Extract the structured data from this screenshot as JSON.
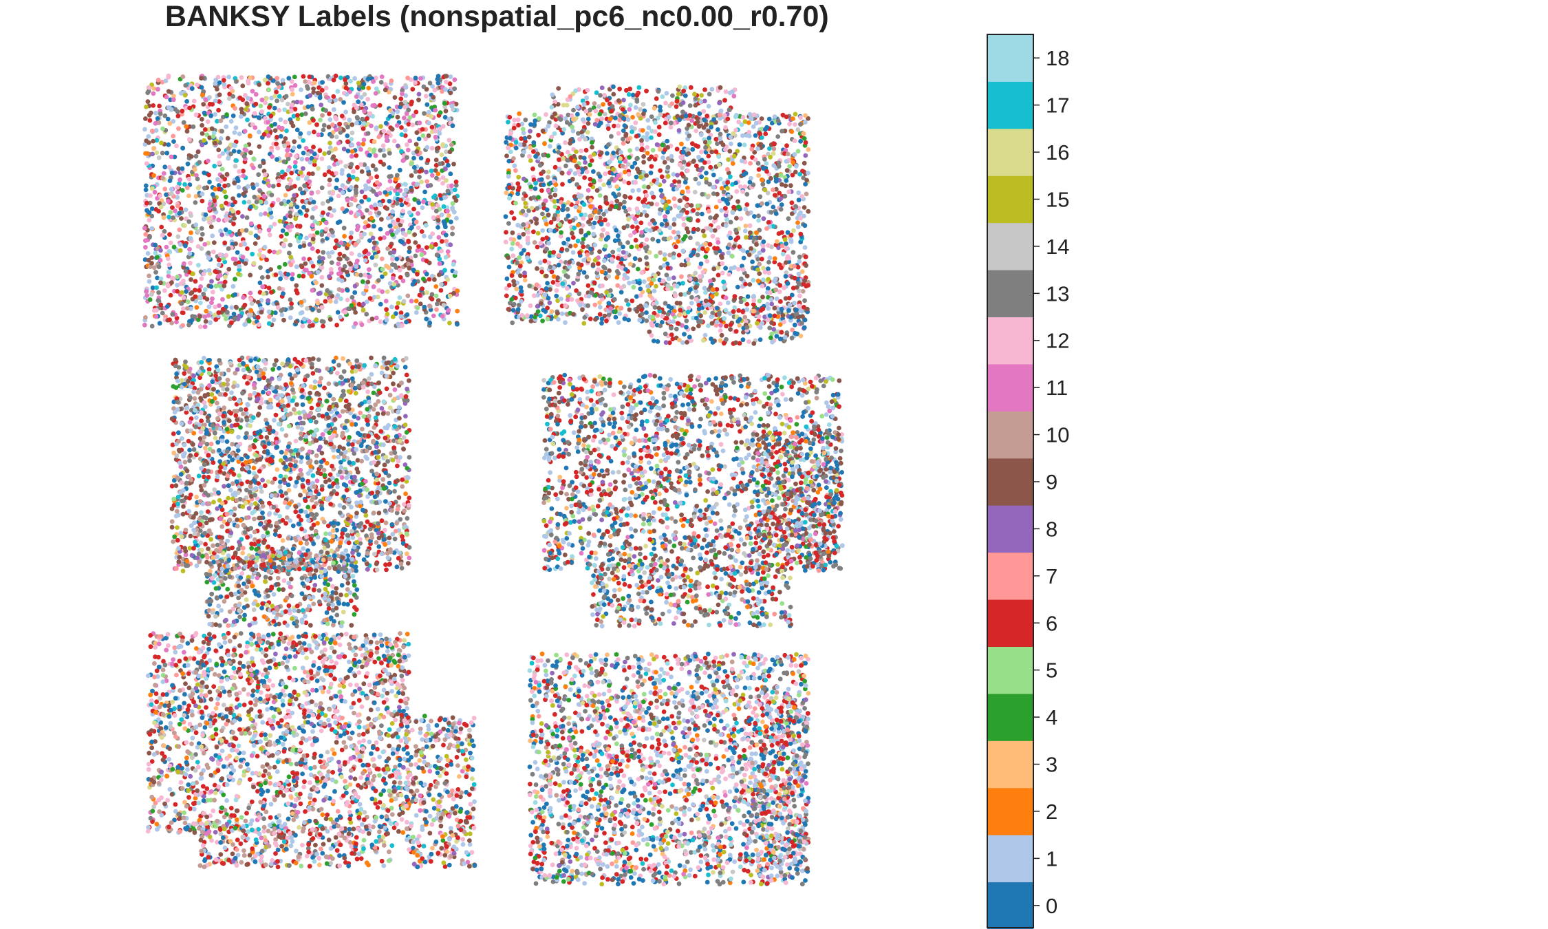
{
  "chart_data": {
    "type": "scatter",
    "title": "BANKSY Labels (nonspatial_pc6_nc0.00_r0.70)",
    "xlabel": "",
    "ylabel": "",
    "axes_visible": false,
    "colorbar": {
      "categories": [
        "0",
        "1",
        "2",
        "3",
        "4",
        "5",
        "6",
        "7",
        "8",
        "9",
        "10",
        "11",
        "12",
        "13",
        "14",
        "15",
        "16",
        "17",
        "18"
      ],
      "colors": [
        "#1f77b4",
        "#aec7e8",
        "#ff7f0e",
        "#ffbb78",
        "#2ca02c",
        "#98df8a",
        "#d62728",
        "#ff9896",
        "#9467bd",
        "#8c564b",
        "#c49c94",
        "#e377c2",
        "#f7b6d2",
        "#7f7f7f",
        "#c7c7c7",
        "#bcbd22",
        "#dbdb8d",
        "#17becf",
        "#9edae5"
      ],
      "ticks": [
        "0",
        "1",
        "2",
        "3",
        "4",
        "5",
        "6",
        "7",
        "8",
        "9",
        "10",
        "11",
        "12",
        "13",
        "14",
        "15",
        "16",
        "17",
        "18"
      ]
    },
    "samples": [
      {
        "name": "top-left section",
        "dominant_labels": [
          "0",
          "1",
          "6",
          "13",
          "9",
          "11",
          "12"
        ]
      },
      {
        "name": "top-right section",
        "dominant_labels": [
          "0",
          "1",
          "6",
          "13",
          "9",
          "12"
        ]
      },
      {
        "name": "middle-left section",
        "dominant_labels": [
          "0",
          "1",
          "6",
          "13",
          "9",
          "10"
        ]
      },
      {
        "name": "middle-right section",
        "dominant_labels": [
          "0",
          "1",
          "6",
          "13",
          "9"
        ]
      },
      {
        "name": "bottom-left section",
        "dominant_labels": [
          "0",
          "1",
          "6",
          "10",
          "12",
          "9"
        ]
      },
      {
        "name": "bottom-right section",
        "dominant_labels": [
          "0",
          "1",
          "6",
          "13",
          "12"
        ]
      }
    ]
  }
}
